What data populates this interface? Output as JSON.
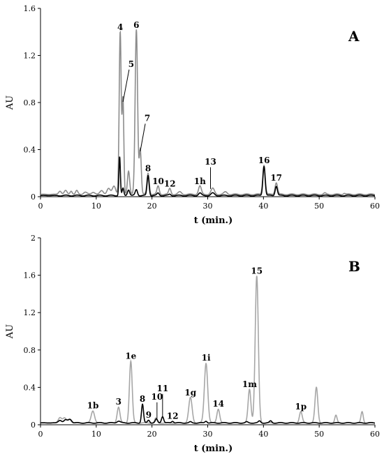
{
  "chart_data": [
    {
      "type": "line",
      "panel_label": "A",
      "xlabel": "t (min.)",
      "ylabel": "AU",
      "xlim": [
        0,
        60
      ],
      "ylim": [
        0,
        1.6
      ],
      "xticks": [
        0,
        10,
        20,
        30,
        40,
        50,
        60
      ],
      "yticks": [
        0,
        0.4,
        0.8,
        1.2,
        1.6
      ],
      "ytick_labels": [
        "0",
        "0.4",
        "0.8",
        "1.2",
        "1.6"
      ],
      "colors": {
        "gray": "#8c8c8c",
        "black": "#000000"
      },
      "series": [
        {
          "color": "gray",
          "baseline": 0.02,
          "peaks": [
            [
              3.5,
              0.03,
              0.25
            ],
            [
              4.5,
              0.03,
              0.25
            ],
            [
              5.5,
              0.03,
              0.2
            ],
            [
              6.5,
              0.03,
              0.2
            ],
            [
              8,
              0.02,
              0.3
            ],
            [
              9.5,
              0.02,
              0.3
            ],
            [
              11,
              0.03,
              0.3
            ],
            [
              12.2,
              0.05,
              0.3
            ],
            [
              13.2,
              0.07,
              0.3
            ],
            [
              14.3,
              1.38,
              0.18
            ],
            [
              14.8,
              0.8,
              0.15
            ],
            [
              15.8,
              0.2,
              0.2
            ],
            [
              17.2,
              1.4,
              0.22
            ],
            [
              17.9,
              0.38,
              0.18
            ],
            [
              19.3,
              0.18,
              0.2
            ],
            [
              21.1,
              0.07,
              0.2
            ],
            [
              23.2,
              0.05,
              0.2
            ],
            [
              25,
              0.02,
              0.3
            ],
            [
              28.6,
              0.07,
              0.25
            ],
            [
              30.9,
              0.05,
              0.3
            ],
            [
              33.2,
              0.02,
              0.3
            ],
            [
              40.1,
              0.25,
              0.22
            ],
            [
              42.3,
              0.1,
              0.22
            ],
            [
              51,
              0.01,
              0.2
            ],
            [
              54.5,
              0.01,
              0.2
            ]
          ]
        },
        {
          "color": "black",
          "baseline": 0.01,
          "peaks": [
            [
              14.2,
              0.33,
              0.13
            ],
            [
              14.8,
              0.06,
              0.15
            ],
            [
              15.8,
              0.05,
              0.2
            ],
            [
              17.2,
              0.05,
              0.2
            ],
            [
              19.3,
              0.17,
              0.18
            ],
            [
              21.1,
              0.02,
              0.2
            ],
            [
              23.2,
              0.01,
              0.2
            ],
            [
              28.6,
              0.02,
              0.25
            ],
            [
              30.9,
              0.02,
              0.3
            ],
            [
              40.1,
              0.25,
              0.2
            ],
            [
              42.3,
              0.08,
              0.2
            ]
          ]
        }
      ],
      "annotations": [
        {
          "text": "4",
          "x": 14.3,
          "y": 1.38
        },
        {
          "text": "6",
          "x": 17.2,
          "y": 1.4
        },
        {
          "text": "5",
          "x": 14.8,
          "y": 0.8,
          "leader": [
            15.9,
            1.08
          ]
        },
        {
          "text": "7",
          "x": 17.9,
          "y": 0.38,
          "leader": [
            18.8,
            0.62
          ]
        },
        {
          "text": "8",
          "x": 19.3,
          "y": 0.18
        },
        {
          "text": "10",
          "x": 21.1,
          "y": 0.07
        },
        {
          "text": "12",
          "x": 23.2,
          "y": 0.05
        },
        {
          "text": "1h",
          "x": 28.6,
          "y": 0.07
        },
        {
          "text": "13",
          "x": 30.5,
          "y": 0.06,
          "leader": [
            30.5,
            0.25
          ]
        },
        {
          "text": "16",
          "x": 40.1,
          "y": 0.25
        },
        {
          "text": "17",
          "x": 42.3,
          "y": 0.1
        }
      ]
    },
    {
      "type": "line",
      "panel_label": "B",
      "xlabel": "t (min.)",
      "ylabel": "AU",
      "xlim": [
        0,
        60
      ],
      "ylim": [
        0,
        2
      ],
      "xticks": [
        0,
        10,
        20,
        30,
        40,
        50,
        60
      ],
      "yticks": [
        0,
        0.4,
        0.8,
        1.2,
        1.6,
        2
      ],
      "ytick_labels": [
        "0",
        "0.4",
        "0.8",
        "1.2",
        "1.6",
        "2"
      ],
      "colors": {
        "gray": "#a6a6a6",
        "black": "#000000"
      },
      "series": [
        {
          "color": "gray",
          "baseline": 0.02,
          "peaks": [
            [
              3.5,
              0.06,
              0.3
            ],
            [
              4.3,
              0.05,
              0.3
            ],
            [
              5.2,
              0.04,
              0.3
            ],
            [
              9.4,
              0.13,
              0.3
            ],
            [
              14,
              0.17,
              0.25
            ],
            [
              16.2,
              0.66,
              0.25
            ],
            [
              20.7,
              0.05,
              0.2
            ],
            [
              26.9,
              0.27,
              0.3
            ],
            [
              29.7,
              0.64,
              0.3
            ],
            [
              31.9,
              0.15,
              0.25
            ],
            [
              37.5,
              0.36,
              0.25
            ],
            [
              38.8,
              1.57,
              0.28
            ],
            [
              46.7,
              0.12,
              0.25
            ],
            [
              49.5,
              0.38,
              0.25
            ],
            [
              53,
              0.08,
              0.2
            ],
            [
              57.7,
              0.12,
              0.2
            ]
          ]
        },
        {
          "color": "black",
          "baseline": 0.02,
          "peaks": [
            [
              3.5,
              0.03,
              0.3
            ],
            [
              4.5,
              0.03,
              0.3
            ],
            [
              5.3,
              0.04,
              0.3
            ],
            [
              14,
              0.02,
              0.3
            ],
            [
              18.3,
              0.2,
              0.18
            ],
            [
              19.4,
              0.03,
              0.2
            ],
            [
              20.8,
              0.04,
              0.2
            ],
            [
              21.9,
              0.07,
              0.2
            ],
            [
              23.7,
              0.02,
              0.2
            ],
            [
              26.9,
              0.01,
              0.2
            ],
            [
              29.7,
              0.02,
              0.2
            ],
            [
              37,
              0.01,
              0.2
            ],
            [
              39.3,
              0.02,
              0.2
            ],
            [
              41.3,
              0.02,
              0.2
            ]
          ]
        }
      ],
      "annotations": [
        {
          "text": "1b",
          "x": 9.4,
          "y": 0.13
        },
        {
          "text": "3",
          "x": 14,
          "y": 0.17
        },
        {
          "text": "1e",
          "x": 16.2,
          "y": 0.66
        },
        {
          "text": "8",
          "x": 18.3,
          "y": 0.2
        },
        {
          "text": "9",
          "x": 19.4,
          "y": 0.03
        },
        {
          "text": "10",
          "x": 20.9,
          "y": 0.06,
          "leader": [
            20.9,
            0.24
          ]
        },
        {
          "text": "11",
          "x": 21.9,
          "y": 0.07,
          "leader": [
            21.9,
            0.33
          ]
        },
        {
          "text": "12",
          "x": 23.7,
          "y": 0.02
        },
        {
          "text": "1g",
          "x": 26.9,
          "y": 0.27
        },
        {
          "text": "1i",
          "x": 29.7,
          "y": 0.64
        },
        {
          "text": "14",
          "x": 31.9,
          "y": 0.15
        },
        {
          "text": "1m",
          "x": 37.5,
          "y": 0.36
        },
        {
          "text": "15",
          "x": 38.8,
          "y": 1.57
        },
        {
          "text": "1p",
          "x": 46.7,
          "y": 0.12
        }
      ]
    }
  ]
}
